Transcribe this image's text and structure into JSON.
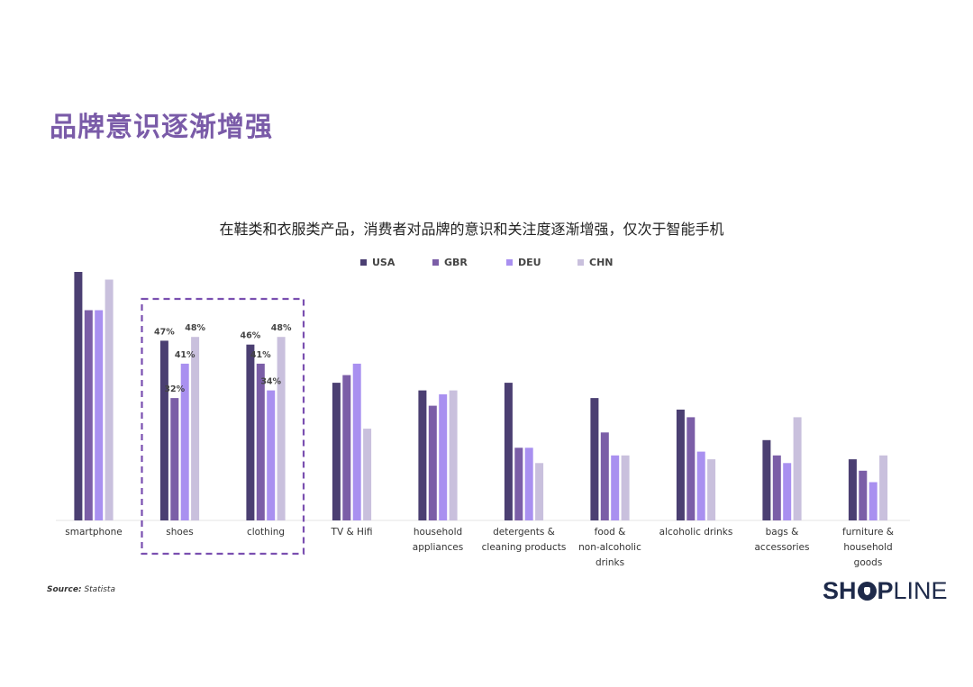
{
  "page_title": "品牌意识逐渐增强",
  "source": {
    "label": "Source:",
    "value": "Statista"
  },
  "logo": {
    "prefix": "SH",
    "suffix_bold": "P",
    "suffix_light": "LINE"
  },
  "colors": {
    "title": "#7a5ba8",
    "highlight_box": "#7a4fb0"
  },
  "chart_data": {
    "type": "bar",
    "title": "在鞋类和衣服类产品，消费者对品牌的意识和关注度逐渐增强，仅次于智能手机",
    "xlabel": "",
    "ylabel": "",
    "ylim": [
      0,
      65
    ],
    "grid": false,
    "legend_position": "top",
    "categories": [
      "smartphone",
      "shoes",
      "clothing",
      "TV & Hifi",
      "household\nappliances",
      "detergents &\ncleaning products",
      "food &\nnon-alcoholic\ndrinks",
      "alcoholic drinks",
      "bags &\naccessories",
      "furniture &\nhousehold\ngoods"
    ],
    "series": [
      {
        "name": "USA",
        "color": "#4b3f72",
        "values": [
          65,
          47,
          46,
          36,
          34,
          36,
          32,
          29,
          21,
          16
        ]
      },
      {
        "name": "GBR",
        "color": "#7b5ea7",
        "values": [
          55,
          32,
          41,
          38,
          30,
          19,
          23,
          27,
          17,
          13
        ]
      },
      {
        "name": "DEU",
        "color": "#a990f0",
        "values": [
          55,
          41,
          34,
          41,
          33,
          19,
          17,
          18,
          15,
          10
        ]
      },
      {
        "name": "CHN",
        "color": "#c9c0dd",
        "values": [
          63,
          48,
          48,
          24,
          34,
          15,
          17,
          16,
          27,
          17
        ]
      }
    ],
    "data_labels": [
      {
        "category_index": 1,
        "series_index": 0,
        "text": "47%"
      },
      {
        "category_index": 1,
        "series_index": 1,
        "text": "32%"
      },
      {
        "category_index": 1,
        "series_index": 2,
        "text": "41%"
      },
      {
        "category_index": 1,
        "series_index": 3,
        "text": "48%"
      },
      {
        "category_index": 2,
        "series_index": 0,
        "text": "46%"
      },
      {
        "category_index": 2,
        "series_index": 1,
        "text": "41%"
      },
      {
        "category_index": 2,
        "series_index": 2,
        "text": "34%"
      },
      {
        "category_index": 2,
        "series_index": 3,
        "text": "48%"
      }
    ],
    "highlighted_categories": [
      "shoes",
      "clothing"
    ]
  }
}
